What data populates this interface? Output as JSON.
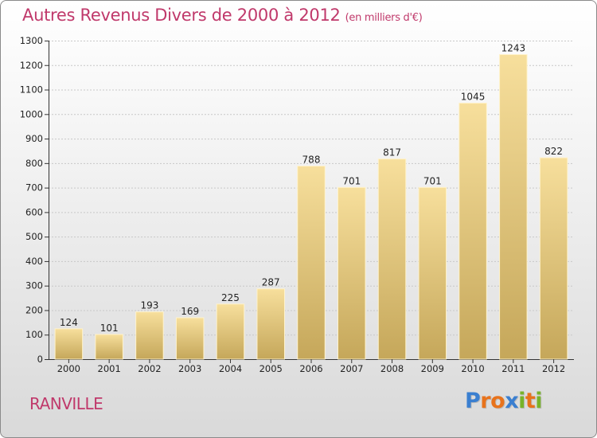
{
  "title": "Autres Revenus Divers de 2000 à 2012",
  "subtitle": "(en milliers d'€)",
  "commune": "RANVILLE",
  "logo": {
    "letters": [
      "P",
      "r",
      "o",
      "x",
      "i",
      "t",
      "i"
    ],
    "colors": [
      "#3a7fd0",
      "#e8731c",
      "#e8731c",
      "#3a7fd0",
      "#78b32a",
      "#e8731c",
      "#78b32a"
    ]
  },
  "colors": {
    "bar_top": "#f7df9c",
    "bar_bottom": "#c5a75a",
    "title": "#c0396b",
    "grid": "#c8c8c8"
  },
  "chart_data": {
    "type": "bar",
    "title": "Autres Revenus Divers de 2000 à 2012",
    "subtitle": "(en milliers d'€)",
    "categories": [
      "2000",
      "2001",
      "2002",
      "2003",
      "2004",
      "2005",
      "2006",
      "2007",
      "2008",
      "2009",
      "2010",
      "2011",
      "2012"
    ],
    "values": [
      124,
      101,
      193,
      169,
      225,
      287,
      788,
      701,
      817,
      701,
      1045,
      1243,
      822
    ],
    "ylim": [
      0,
      1300
    ],
    "yticks": [
      0,
      100,
      200,
      300,
      400,
      500,
      600,
      700,
      800,
      900,
      1000,
      1100,
      1200,
      1300
    ],
    "grid": true,
    "xlabel": "",
    "ylabel": ""
  }
}
